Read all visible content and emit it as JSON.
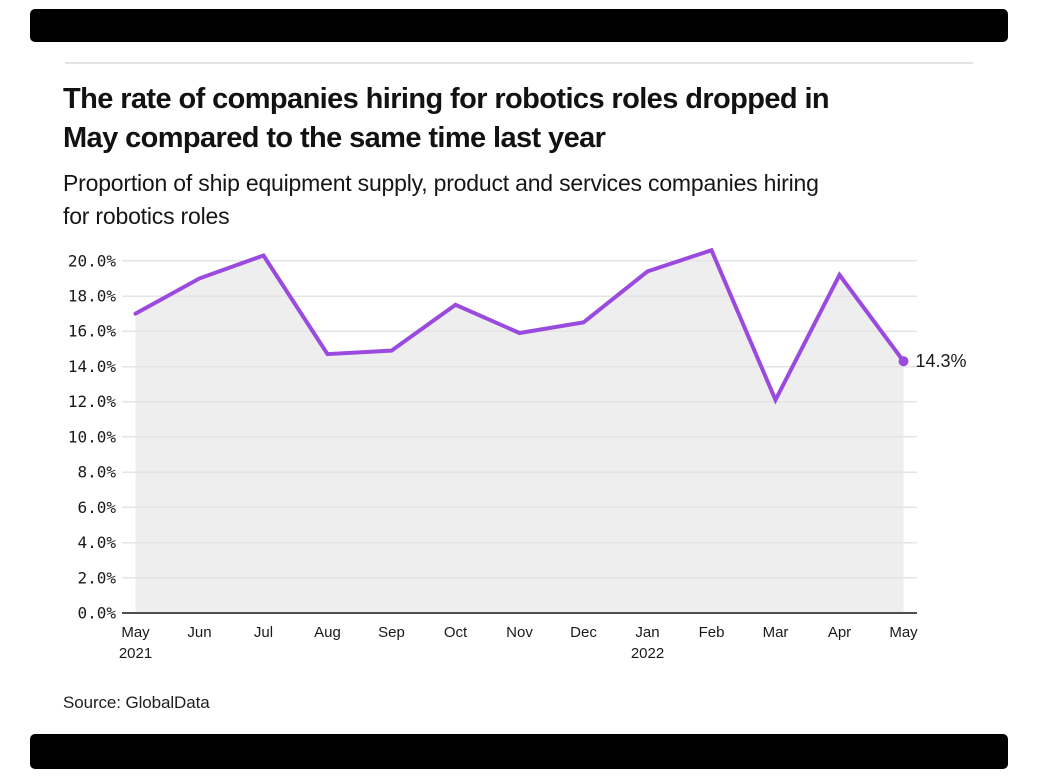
{
  "page": {
    "background": "#ffffff",
    "bar_color": "#000000"
  },
  "header": {
    "title_lines": [
      "The rate of companies hiring for robotics roles dropped in",
      "May compared to the same time last year"
    ],
    "subtitle_lines": [
      "Proportion of ship equipment supply, product and services companies hiring",
      "for robotics roles"
    ]
  },
  "chart_data": {
    "type": "line",
    "categories": [
      "May",
      "Jun",
      "Jul",
      "Aug",
      "Sep",
      "Oct",
      "Nov",
      "Dec",
      "Jan",
      "Feb",
      "Mar",
      "Apr",
      "May"
    ],
    "year_labels": [
      "2021",
      "",
      "",
      "",
      "",
      "",
      "",
      "",
      "2022",
      "",
      "",
      "",
      ""
    ],
    "values": [
      17.0,
      19.0,
      20.3,
      14.7,
      14.9,
      17.5,
      15.9,
      16.5,
      19.4,
      20.6,
      12.1,
      19.2,
      14.3
    ],
    "unit": "%",
    "ylim": [
      0,
      20
    ],
    "ytick_step": 2,
    "ytick_labels": [
      "0.0%",
      "2.0%",
      "4.0%",
      "6.0%",
      "8.0%",
      "10.0%",
      "12.0%",
      "14.0%",
      "16.0%",
      "18.0%",
      "20.0%"
    ],
    "end_label": "14.3%",
    "line_color": "#9b4ae0",
    "area_color": "#eeeeee",
    "grid_color": "#e4e4e4",
    "axis_color": "#4f4f4f",
    "label_color": "#1a1a1a",
    "grid": true,
    "legend": "none"
  },
  "footer": {
    "source": "Source: GlobalData"
  }
}
